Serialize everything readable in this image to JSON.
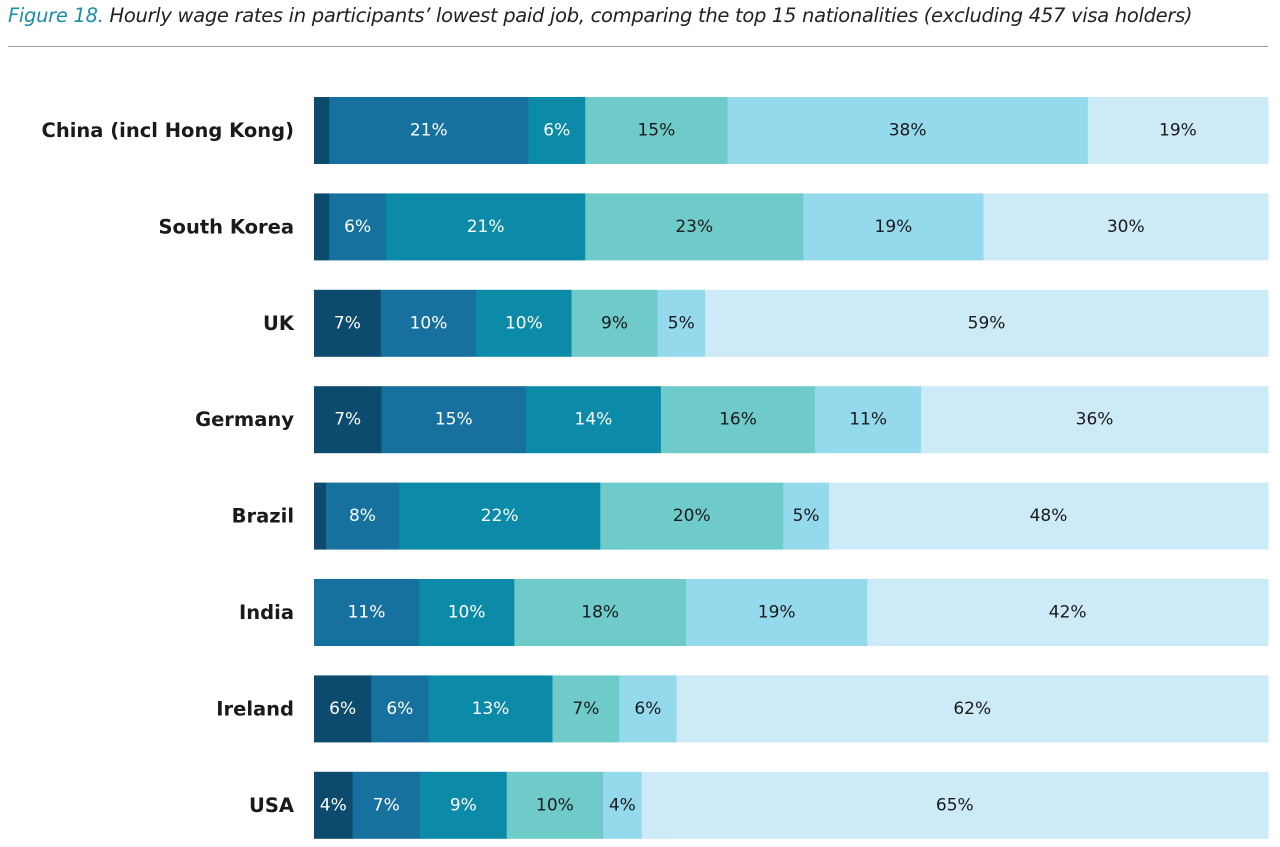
{
  "header": {
    "figure_num": "Figure 18.",
    "title_text": "Hourly wage rates in participants’ lowest paid job, comparing the top 15 nationalities (excluding 457 visa holders)"
  },
  "colors": [
    "#0c4a6e",
    "#16719e",
    "#0c8ba8",
    "#6ecbc9",
    "#94d9ec",
    "#cdeaf7"
  ],
  "text_colors": [
    "#ffffff",
    "#ffffff",
    "#ffffff",
    "#1a1a1a",
    "#1a1a1a",
    "#1a1a1a"
  ],
  "chart_data": {
    "type": "bar",
    "orientation": "horizontal",
    "stacked": true,
    "title": "Figure 18. Hourly wage rates in participants’ lowest paid job, comparing the top 15 nationalities (excluding 457 visa holders)",
    "categories": [
      "China (incl Hong Kong)",
      "South Korea",
      "UK",
      "Germany",
      "Brazil",
      "India",
      "Ireland",
      "USA"
    ],
    "series_values": [
      [
        1.6,
        21,
        6,
        15,
        38,
        19
      ],
      [
        1.6,
        6,
        21,
        23,
        19,
        30
      ],
      [
        7,
        10,
        10,
        9,
        5,
        59
      ],
      [
        7,
        15,
        14,
        16,
        11,
        36
      ],
      [
        1.3,
        8,
        22,
        20,
        5,
        48
      ],
      [
        0,
        11,
        10,
        18,
        19,
        42
      ],
      [
        6,
        6,
        13,
        7,
        6,
        62
      ],
      [
        4,
        7,
        9,
        10,
        4,
        65
      ]
    ],
    "labels": [
      [
        "",
        "21%",
        "6%",
        "15%",
        "38%",
        "19%"
      ],
      [
        "",
        "6%",
        "21%",
        "23%",
        "19%",
        "30%"
      ],
      [
        "7%",
        "10%",
        "10%",
        "9%",
        "5%",
        "59%"
      ],
      [
        "7%",
        "15%",
        "14%",
        "16%",
        "11%",
        "36%"
      ],
      [
        "",
        "8%",
        "22%",
        "20%",
        "5%",
        "48%"
      ],
      [
        "",
        "11%",
        "10%",
        "18%",
        "19%",
        "42%"
      ],
      [
        "6%",
        "6%",
        "13%",
        "7%",
        "6%",
        "62%"
      ],
      [
        "4%",
        "7%",
        "9%",
        "10%",
        "4%",
        "65%"
      ]
    ],
    "xlabel": "",
    "ylabel": "",
    "grid": false
  }
}
